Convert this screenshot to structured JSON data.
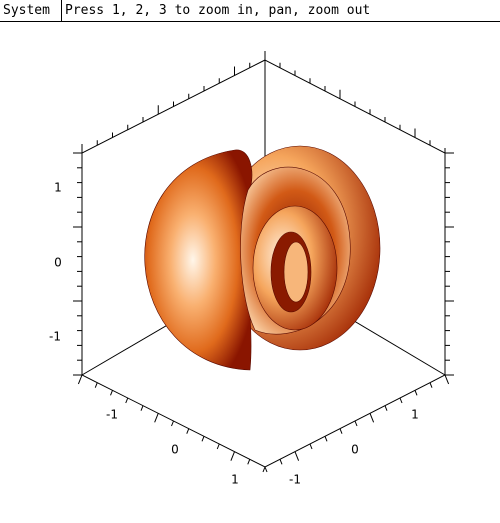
{
  "toolbar": {
    "menu": "System",
    "hint": "Press 1, 2, 3 to zoom in, pan, zoom out"
  },
  "plot": {
    "z_ticks": [
      1,
      0,
      -1
    ],
    "x_ticks": [
      -1,
      0,
      1
    ],
    "y_ticks": [
      1,
      0,
      -1
    ]
  }
}
